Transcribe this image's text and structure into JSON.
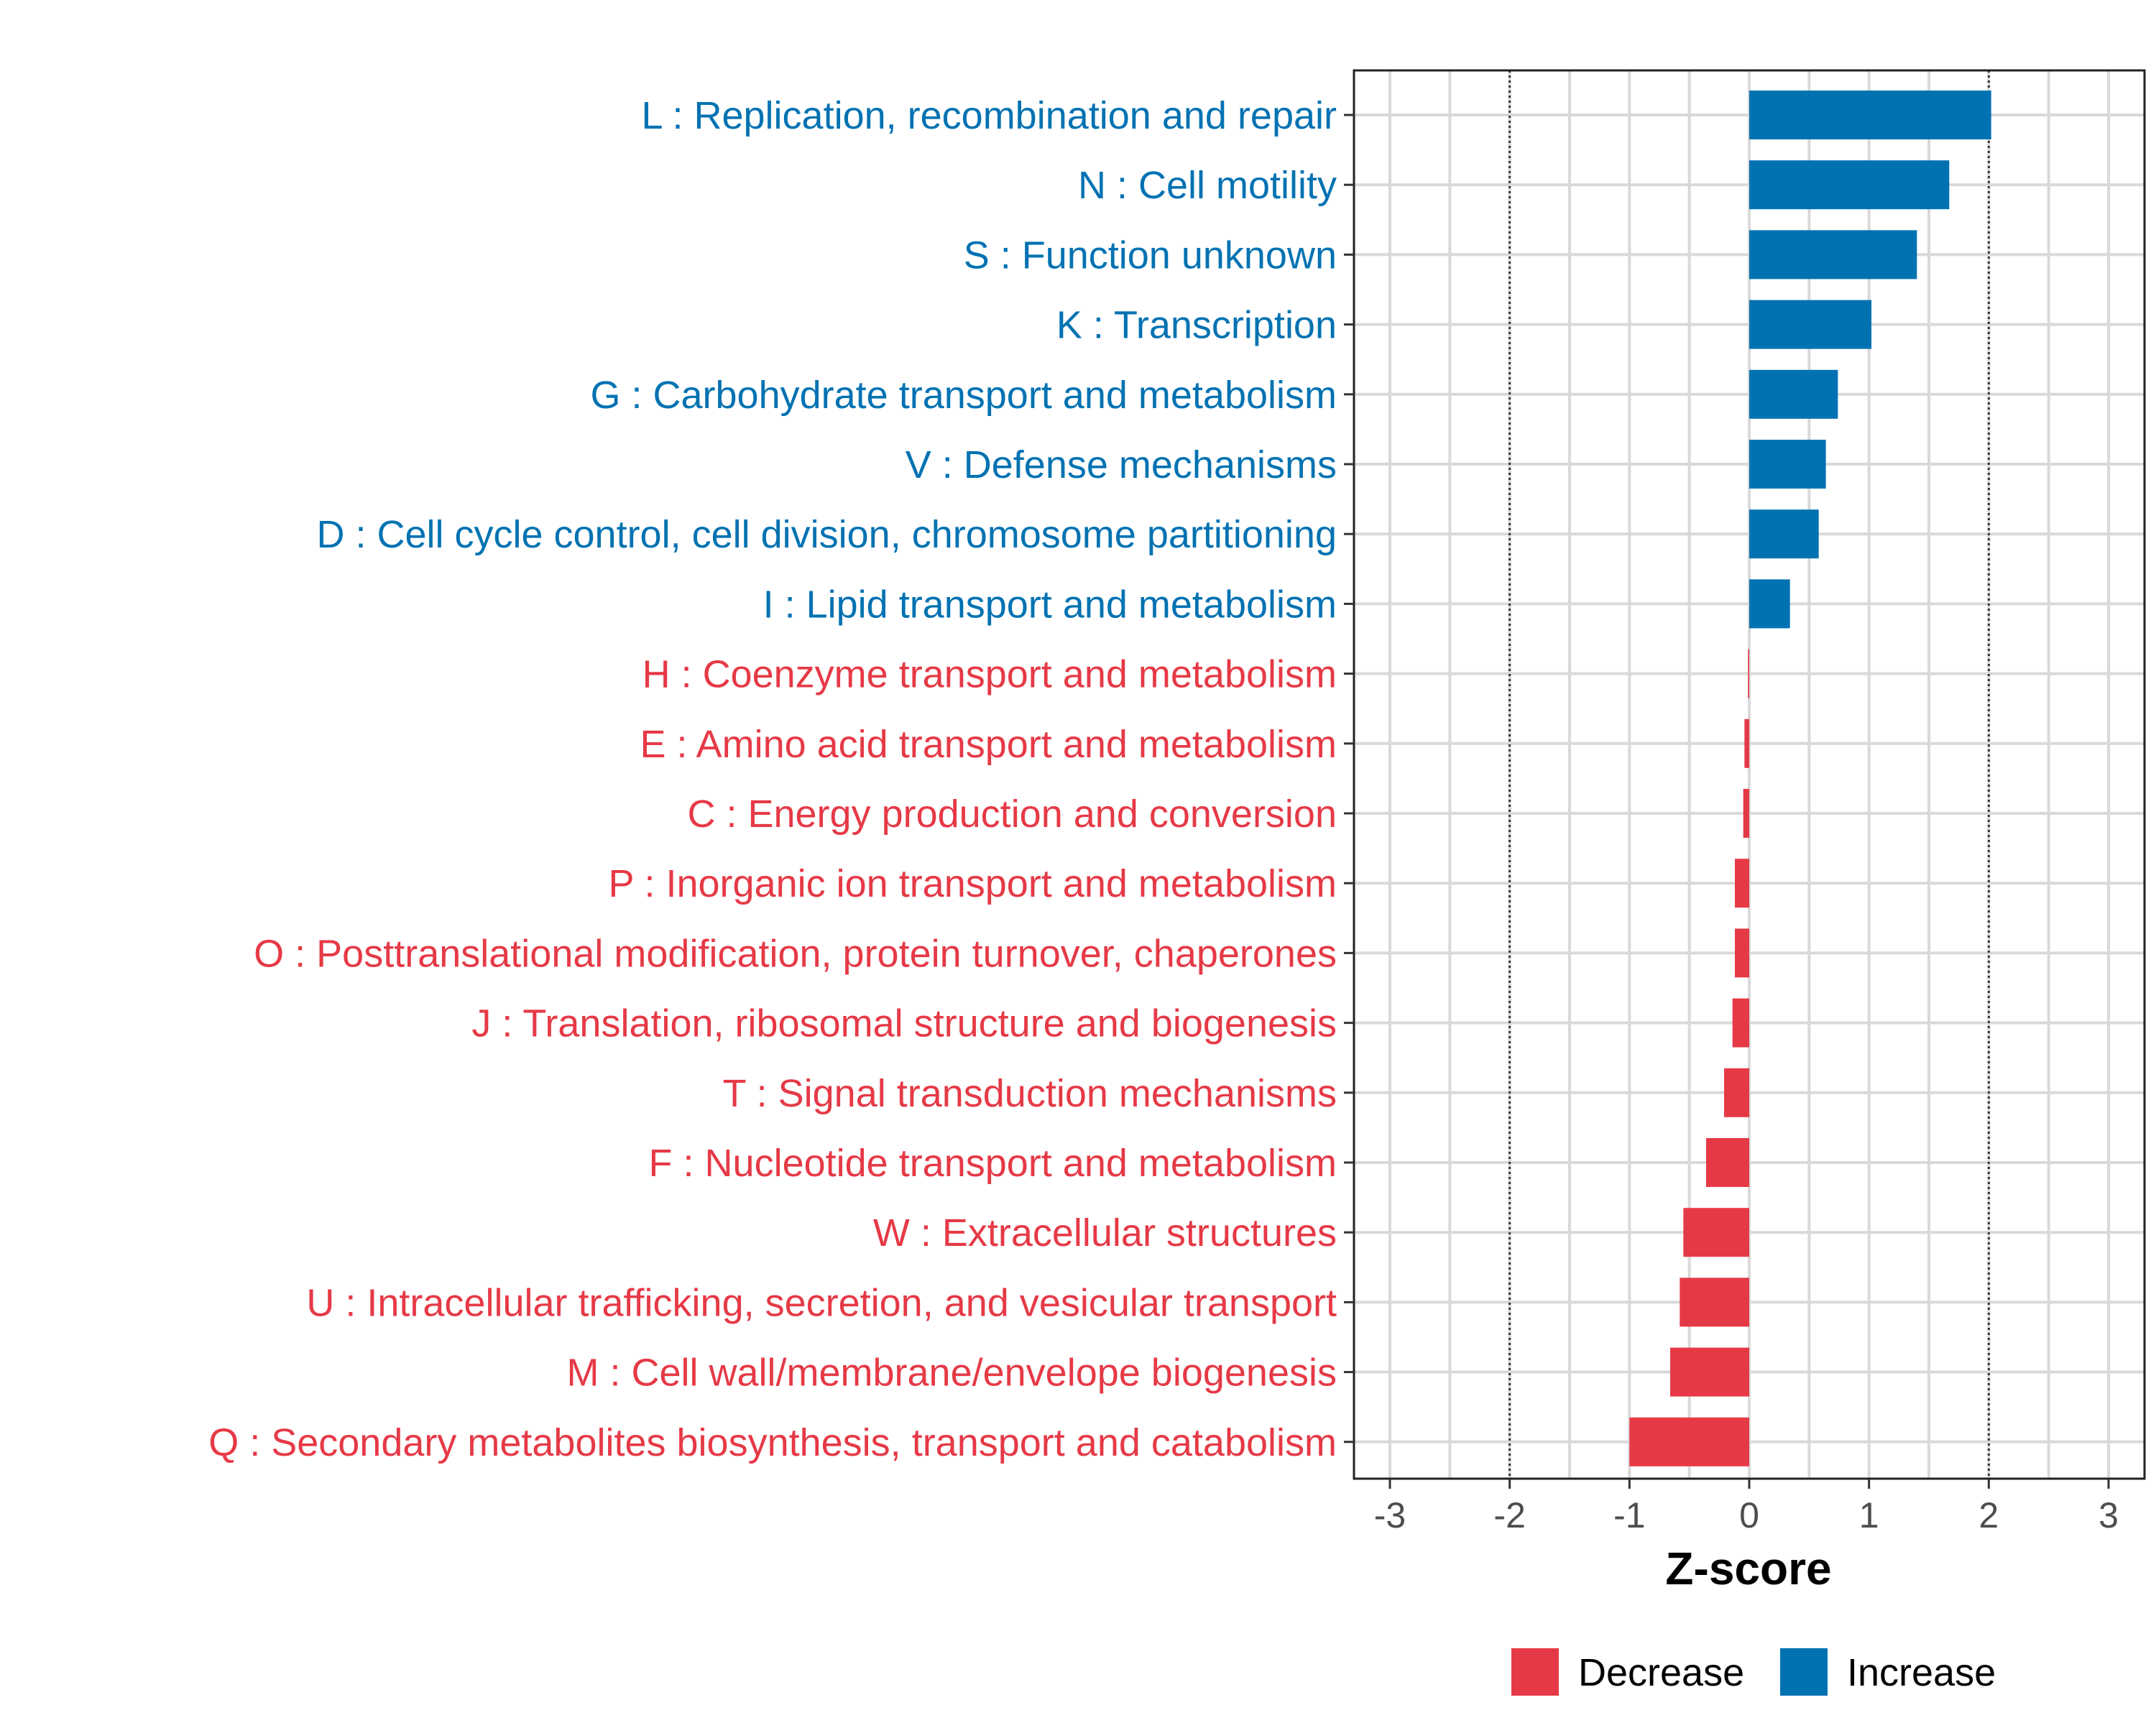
{
  "chart_data": {
    "type": "bar",
    "orientation": "horizontal",
    "xlabel": "Z-score",
    "xlim": [
      -3.3,
      3.3
    ],
    "xticks": [
      -3,
      -2,
      -1,
      0,
      1,
      2,
      3
    ],
    "xtick_labels": [
      "-3",
      "-2",
      "-1",
      "0",
      "1",
      "2",
      "3"
    ],
    "reference_lines": [
      -2,
      2
    ],
    "grid": true,
    "legend_position": "bottom-center",
    "colors": {
      "Decrease": "#E63946",
      "Increase": "#0072B2"
    },
    "legend": [
      {
        "label": "Decrease",
        "color": "#E63946"
      },
      {
        "label": "Increase",
        "color": "#0072B2"
      }
    ],
    "categories": [
      {
        "label": "L : Replication, recombination and repair",
        "value": 2.02,
        "group": "Increase"
      },
      {
        "label": "N : Cell motility",
        "value": 1.67,
        "group": "Increase"
      },
      {
        "label": "S : Function unknown",
        "value": 1.4,
        "group": "Increase"
      },
      {
        "label": "K : Transcription",
        "value": 1.02,
        "group": "Increase"
      },
      {
        "label": "G : Carbohydrate transport and metabolism",
        "value": 0.74,
        "group": "Increase"
      },
      {
        "label": "V : Defense mechanisms",
        "value": 0.64,
        "group": "Increase"
      },
      {
        "label": "D : Cell cycle control, cell division, chromosome partitioning",
        "value": 0.58,
        "group": "Increase"
      },
      {
        "label": "I : Lipid transport and metabolism",
        "value": 0.34,
        "group": "Increase"
      },
      {
        "label": "H : Coenzyme transport and metabolism",
        "value": -0.01,
        "group": "Decrease"
      },
      {
        "label": "E : Amino acid transport and metabolism",
        "value": -0.04,
        "group": "Decrease"
      },
      {
        "label": "C : Energy production and conversion",
        "value": -0.05,
        "group": "Decrease"
      },
      {
        "label": "P : Inorganic ion transport and metabolism",
        "value": -0.12,
        "group": "Decrease"
      },
      {
        "label": "O : Posttranslational modification, protein turnover, chaperones",
        "value": -0.12,
        "group": "Decrease"
      },
      {
        "label": "J : Translation, ribosomal structure and biogenesis",
        "value": -0.14,
        "group": "Decrease"
      },
      {
        "label": "T : Signal transduction mechanisms",
        "value": -0.21,
        "group": "Decrease"
      },
      {
        "label": "F : Nucleotide transport and metabolism",
        "value": -0.36,
        "group": "Decrease"
      },
      {
        "label": "W : Extracellular structures",
        "value": -0.55,
        "group": "Decrease"
      },
      {
        "label": "U : Intracellular trafficking, secretion, and vesicular transport",
        "value": -0.58,
        "group": "Decrease"
      },
      {
        "label": "M : Cell wall/membrane/envelope biogenesis",
        "value": -0.66,
        "group": "Decrease"
      },
      {
        "label": "Q : Secondary metabolites biosynthesis, transport and catabolism",
        "value": -1.0,
        "group": "Decrease"
      }
    ]
  }
}
